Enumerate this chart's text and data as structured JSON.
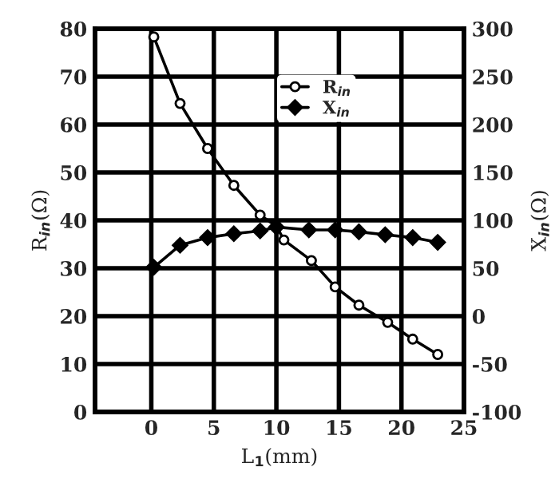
{
  "chart_data": {
    "type": "line",
    "xlabel": "L$_{1}$(mm)",
    "ylabel": "R$_{in}$(Ω)",
    "y2label": "X$_{in}$(Ω)",
    "xlim": [
      -4.5,
      25
    ],
    "xticks": [
      0,
      5,
      10,
      15,
      20,
      25
    ],
    "ylim": [
      0,
      80
    ],
    "yticks": [
      0,
      10,
      20,
      30,
      40,
      50,
      60,
      70,
      80
    ],
    "y2lim": [
      -100,
      300
    ],
    "y2ticks": [
      -100,
      -50,
      0,
      50,
      100,
      150,
      200,
      250,
      300
    ],
    "grid": true,
    "legend": "top",
    "line_style": "solid",
    "series": [
      {
        "name": "R$_{in}$",
        "color": "#000000",
        "marker": "circle",
        "x": [
          0.2,
          2.3,
          4.5,
          6.6,
          8.7,
          10,
          10.6,
          12.8,
          14.7,
          16.6,
          18.9,
          20.9,
          22.9
        ],
        "values": [
          78.3,
          64.4,
          55.0,
          47.3,
          41.1,
          38.8,
          35.9,
          31.6,
          26.1,
          22.3,
          18.7,
          15.2,
          12.0
        ]
      },
      {
        "name": "X$_{in}$",
        "color": "#000000",
        "marker": "diamond",
        "axis": "y2",
        "x": [
          0.2,
          2.3,
          4.5,
          6.6,
          8.7,
          10,
          12.6,
          14.7,
          16.6,
          18.7,
          20.9,
          22.9
        ],
        "values": [
          51,
          74,
          82,
          86,
          89,
          93,
          90,
          90,
          88,
          85,
          82,
          77
        ]
      }
    ]
  }
}
